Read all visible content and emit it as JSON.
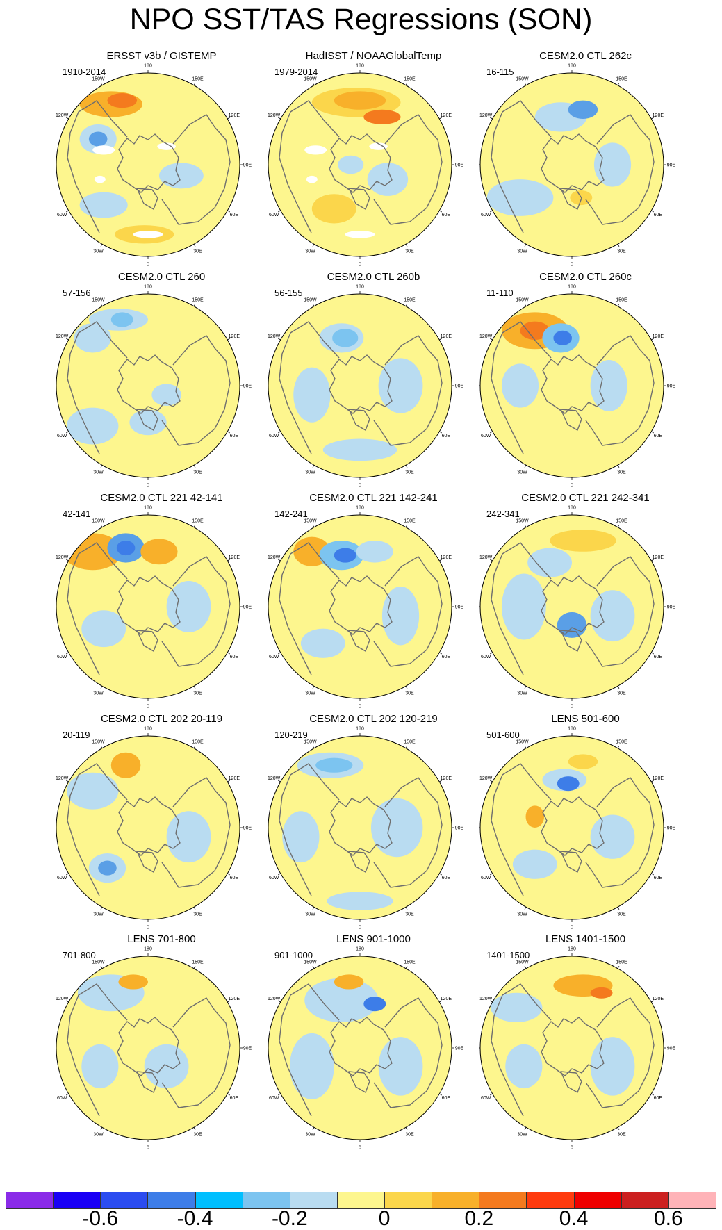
{
  "title": "NPO SST/TAS Regressions (SON)",
  "longitude_labels": [
    "180",
    "150E",
    "120E",
    "90E",
    "60E",
    "30E",
    "0",
    "30W",
    "60W",
    "90W",
    "120W",
    "150W"
  ],
  "panels": [
    {
      "title": "ERSST v3b / GISTEMP",
      "period": "1910-2014",
      "missing": true,
      "blobs": [
        [
          0.3,
          0.17,
          0.17,
          0.07,
          "#f8b02a"
        ],
        [
          0.36,
          0.15,
          0.08,
          0.04,
          "#f47a1e"
        ],
        [
          0.23,
          0.36,
          0.1,
          0.08,
          "#b9dcf1"
        ],
        [
          0.23,
          0.36,
          0.05,
          0.04,
          "#5a9fe6"
        ],
        [
          0.26,
          0.72,
          0.13,
          0.07,
          "#b9dcf1"
        ],
        [
          0.48,
          0.88,
          0.16,
          0.05,
          "#fbd64b"
        ],
        [
          0.68,
          0.56,
          0.12,
          0.07,
          "#b9dcf1"
        ]
      ]
    },
    {
      "title": "HadISST / NOAAGlobalTemp",
      "period": "1979-2014",
      "missing": true,
      "blobs": [
        [
          0.48,
          0.16,
          0.24,
          0.08,
          "#fbd64b"
        ],
        [
          0.5,
          0.15,
          0.14,
          0.05,
          "#f8b02a"
        ],
        [
          0.62,
          0.24,
          0.1,
          0.04,
          "#f47a1e"
        ],
        [
          0.36,
          0.74,
          0.12,
          0.08,
          "#fbd64b"
        ],
        [
          0.65,
          0.58,
          0.11,
          0.09,
          "#b9dcf1"
        ],
        [
          0.45,
          0.5,
          0.07,
          0.05,
          "#b9dcf1"
        ]
      ]
    },
    {
      "title": "CESM2.0 CTL 262c",
      "period": "16-115",
      "missing": false,
      "blobs": [
        [
          0.44,
          0.24,
          0.14,
          0.08,
          "#b9dcf1"
        ],
        [
          0.56,
          0.2,
          0.08,
          0.05,
          "#5a9fe6"
        ],
        [
          0.22,
          0.68,
          0.18,
          0.1,
          "#b9dcf1"
        ],
        [
          0.72,
          0.5,
          0.1,
          0.12,
          "#b9dcf1"
        ],
        [
          0.55,
          0.68,
          0.06,
          0.04,
          "#fbd64b"
        ]
      ]
    },
    {
      "title": "CESM2.0 CTL 260",
      "period": "57-156",
      "missing": false,
      "blobs": [
        [
          0.34,
          0.14,
          0.16,
          0.06,
          "#b9dcf1"
        ],
        [
          0.36,
          0.14,
          0.06,
          0.04,
          "#7cc4f0"
        ],
        [
          0.2,
          0.24,
          0.1,
          0.08,
          "#b9dcf1"
        ],
        [
          0.2,
          0.72,
          0.14,
          0.1,
          "#b9dcf1"
        ],
        [
          0.5,
          0.7,
          0.1,
          0.07,
          "#b9dcf1"
        ],
        [
          0.6,
          0.55,
          0.08,
          0.06,
          "#b9dcf1"
        ]
      ]
    },
    {
      "title": "CESM2.0 CTL 260b",
      "period": "56-155",
      "missing": false,
      "blobs": [
        [
          0.4,
          0.24,
          0.12,
          0.08,
          "#b9dcf1"
        ],
        [
          0.42,
          0.24,
          0.07,
          0.05,
          "#7cc4f0"
        ],
        [
          0.24,
          0.55,
          0.1,
          0.15,
          "#b9dcf1"
        ],
        [
          0.72,
          0.5,
          0.12,
          0.15,
          "#b9dcf1"
        ],
        [
          0.5,
          0.85,
          0.2,
          0.06,
          "#b9dcf1"
        ]
      ]
    },
    {
      "title": "CESM2.0 CTL 260c",
      "period": "11-110",
      "missing": false,
      "blobs": [
        [
          0.3,
          0.2,
          0.18,
          0.1,
          "#f8b02a"
        ],
        [
          0.3,
          0.2,
          0.08,
          0.05,
          "#f47a1e"
        ],
        [
          0.44,
          0.24,
          0.1,
          0.08,
          "#7cc4f0"
        ],
        [
          0.45,
          0.24,
          0.05,
          0.04,
          "#3d7de8"
        ],
        [
          0.22,
          0.5,
          0.1,
          0.12,
          "#b9dcf1"
        ],
        [
          0.7,
          0.5,
          0.1,
          0.14,
          "#b9dcf1"
        ]
      ]
    },
    {
      "title": "CESM2.0 CTL 221 42-141",
      "period": "42-141",
      "missing": false,
      "blobs": [
        [
          0.2,
          0.2,
          0.16,
          0.1,
          "#f8b02a"
        ],
        [
          0.38,
          0.18,
          0.1,
          0.08,
          "#5a9fe6"
        ],
        [
          0.38,
          0.18,
          0.05,
          0.04,
          "#3d7de8"
        ],
        [
          0.56,
          0.2,
          0.1,
          0.07,
          "#f8b02a"
        ],
        [
          0.26,
          0.62,
          0.12,
          0.1,
          "#b9dcf1"
        ],
        [
          0.72,
          0.5,
          0.12,
          0.14,
          "#b9dcf1"
        ]
      ]
    },
    {
      "title": "CESM2.0 CTL 221 142-241",
      "period": "142-241",
      "missing": false,
      "blobs": [
        [
          0.24,
          0.2,
          0.1,
          0.08,
          "#f8b02a"
        ],
        [
          0.4,
          0.22,
          0.12,
          0.08,
          "#7cc4f0"
        ],
        [
          0.42,
          0.22,
          0.06,
          0.04,
          "#3d7de8"
        ],
        [
          0.58,
          0.2,
          0.1,
          0.06,
          "#b9dcf1"
        ],
        [
          0.3,
          0.7,
          0.12,
          0.08,
          "#b9dcf1"
        ],
        [
          0.72,
          0.55,
          0.1,
          0.16,
          "#b9dcf1"
        ]
      ]
    },
    {
      "title": "CESM2.0 CTL 221 242-341",
      "period": "242-341",
      "missing": false,
      "blobs": [
        [
          0.56,
          0.14,
          0.18,
          0.06,
          "#fbd64b"
        ],
        [
          0.38,
          0.26,
          0.12,
          0.08,
          "#b9dcf1"
        ],
        [
          0.24,
          0.5,
          0.12,
          0.18,
          "#b9dcf1"
        ],
        [
          0.5,
          0.6,
          0.08,
          0.07,
          "#5a9fe6"
        ],
        [
          0.72,
          0.55,
          0.12,
          0.14,
          "#b9dcf1"
        ]
      ]
    },
    {
      "title": "CESM2.0 CTL 202 20-119",
      "period": "20-119",
      "missing": false,
      "blobs": [
        [
          0.2,
          0.3,
          0.14,
          0.1,
          "#b9dcf1"
        ],
        [
          0.38,
          0.16,
          0.08,
          0.07,
          "#f8b02a"
        ],
        [
          0.28,
          0.72,
          0.1,
          0.08,
          "#b9dcf1"
        ],
        [
          0.28,
          0.72,
          0.05,
          0.04,
          "#5a9fe6"
        ],
        [
          0.72,
          0.55,
          0.12,
          0.14,
          "#b9dcf1"
        ]
      ]
    },
    {
      "title": "CESM2.0 CTL 202 120-219",
      "period": "120-219",
      "missing": false,
      "blobs": [
        [
          0.34,
          0.16,
          0.18,
          0.07,
          "#b9dcf1"
        ],
        [
          0.36,
          0.16,
          0.1,
          0.04,
          "#7cc4f0"
        ],
        [
          0.18,
          0.55,
          0.1,
          0.14,
          "#b9dcf1"
        ],
        [
          0.7,
          0.5,
          0.14,
          0.16,
          "#b9dcf1"
        ],
        [
          0.5,
          0.9,
          0.18,
          0.05,
          "#b9dcf1"
        ]
      ]
    },
    {
      "title": "LENS 501-600",
      "period": "501-600",
      "missing": false,
      "blobs": [
        [
          0.46,
          0.24,
          0.12,
          0.06,
          "#b9dcf1"
        ],
        [
          0.48,
          0.26,
          0.06,
          0.04,
          "#3d7de8"
        ],
        [
          0.56,
          0.14,
          0.08,
          0.04,
          "#fbd64b"
        ],
        [
          0.3,
          0.44,
          0.05,
          0.06,
          "#f8b02a"
        ],
        [
          0.72,
          0.55,
          0.12,
          0.12,
          "#b9dcf1"
        ],
        [
          0.3,
          0.7,
          0.12,
          0.08,
          "#b9dcf1"
        ]
      ]
    },
    {
      "title": "LENS 701-800",
      "period": "701-800",
      "missing": false,
      "blobs": [
        [
          0.3,
          0.2,
          0.18,
          0.1,
          "#b9dcf1"
        ],
        [
          0.42,
          0.14,
          0.08,
          0.04,
          "#f8b02a"
        ],
        [
          0.24,
          0.6,
          0.1,
          0.12,
          "#b9dcf1"
        ],
        [
          0.6,
          0.6,
          0.12,
          0.12,
          "#b9dcf1"
        ]
      ]
    },
    {
      "title": "LENS 901-1000",
      "period": "901-1000",
      "missing": false,
      "blobs": [
        [
          0.4,
          0.24,
          0.2,
          0.12,
          "#b9dcf1"
        ],
        [
          0.44,
          0.14,
          0.08,
          0.04,
          "#f8b02a"
        ],
        [
          0.58,
          0.26,
          0.06,
          0.04,
          "#3d7de8"
        ],
        [
          0.24,
          0.6,
          0.12,
          0.18,
          "#b9dcf1"
        ],
        [
          0.72,
          0.6,
          0.12,
          0.16,
          "#b9dcf1"
        ]
      ]
    },
    {
      "title": "LENS 1401-1500",
      "period": "1401-1500",
      "missing": false,
      "blobs": [
        [
          0.2,
          0.28,
          0.14,
          0.08,
          "#b9dcf1"
        ],
        [
          0.56,
          0.16,
          0.16,
          0.06,
          "#f8b02a"
        ],
        [
          0.66,
          0.2,
          0.06,
          0.03,
          "#f47a1e"
        ],
        [
          0.24,
          0.6,
          0.1,
          0.12,
          "#b9dcf1"
        ],
        [
          0.72,
          0.6,
          0.12,
          0.16,
          "#b9dcf1"
        ]
      ]
    }
  ],
  "colorbar": {
    "colors": [
      "#8a2be8",
      "#1a00f5",
      "#2b4cf0",
      "#3d7de8",
      "#00bfff",
      "#7cc4f0",
      "#b9dcf1",
      "#fdf68e",
      "#fbd64b",
      "#f8b02a",
      "#f47a1e",
      "#ff3b0e",
      "#ef0000",
      "#cc2020",
      "#ffb3b8"
    ],
    "labels": [
      "-0.6",
      "-0.4",
      "-0.2",
      "0",
      "0.2",
      "0.4",
      "0.6"
    ]
  }
}
